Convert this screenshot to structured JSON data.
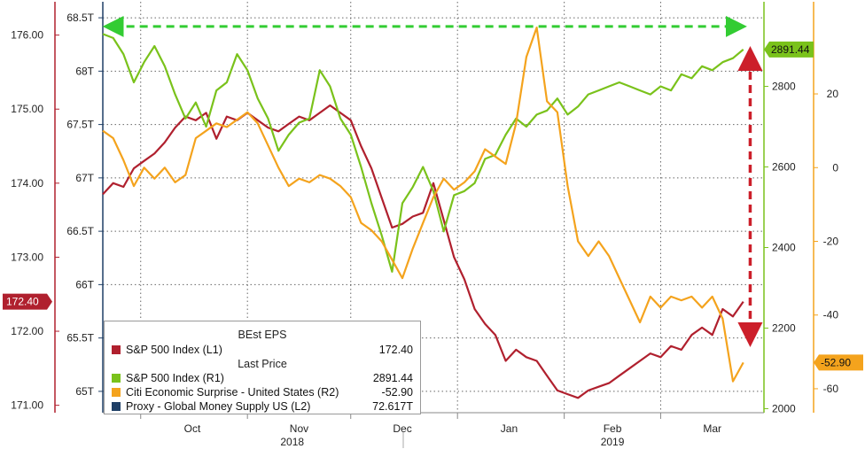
{
  "chart_data": {
    "type": "line",
    "x_range": [
      "2018-09-20",
      "2019-03-31"
    ],
    "x_month_labels": [
      "Oct",
      "Nov",
      "Dec",
      "Jan",
      "Feb",
      "Mar"
    ],
    "x_year_labels": [
      "2018",
      "2019"
    ],
    "axes": {
      "L1": {
        "ticks": [
          "171.00",
          "172.00",
          "173.00",
          "174.00",
          "175.00",
          "176.00"
        ],
        "range": [
          170.9,
          176.45
        ],
        "color": "#b0202e",
        "current_label": "172.40",
        "current_value": 172.4
      },
      "L2": {
        "ticks": [
          "65T",
          "65.5T",
          "66T",
          "66.5T",
          "67T",
          "67.5T",
          "68T",
          "68.5T"
        ],
        "range": [
          64.8,
          68.65
        ]
      },
      "R1": {
        "ticks": [
          "2000",
          "2200",
          "2400",
          "2600",
          "2800"
        ],
        "range": [
          1990,
          3010
        ],
        "color": "#7ac21b",
        "current_label": "2891.44",
        "current_value": 2891.44
      },
      "R2": {
        "ticks": [
          "-60",
          "-40",
          "-20",
          "0",
          "20"
        ],
        "range": [
          -66.5,
          45
        ],
        "color": "#f4a31d",
        "current_label": "-52.90",
        "current_value": -52.9
      }
    },
    "series": [
      {
        "name": "S&P 500 Index (L1)",
        "axis": "L1",
        "color": "#b0202e",
        "points": [
          [
            "2018-09-20",
            173.85
          ],
          [
            "2018-09-23",
            174.0
          ],
          [
            "2018-09-26",
            173.95
          ],
          [
            "2018-09-29",
            174.2
          ],
          [
            "2018-10-02",
            174.3
          ],
          [
            "2018-10-05",
            174.4
          ],
          [
            "2018-10-08",
            174.55
          ],
          [
            "2018-10-11",
            174.75
          ],
          [
            "2018-10-14",
            174.9
          ],
          [
            "2018-10-17",
            174.85
          ],
          [
            "2018-10-20",
            174.95
          ],
          [
            "2018-10-23",
            174.6
          ],
          [
            "2018-10-26",
            174.9
          ],
          [
            "2018-10-29",
            174.85
          ],
          [
            "2018-11-01",
            174.95
          ],
          [
            "2018-11-04",
            174.85
          ],
          [
            "2018-11-07",
            174.75
          ],
          [
            "2018-11-10",
            174.7
          ],
          [
            "2018-11-13",
            174.8
          ],
          [
            "2018-11-16",
            174.9
          ],
          [
            "2018-11-19",
            174.85
          ],
          [
            "2018-11-22",
            174.95
          ],
          [
            "2018-11-25",
            175.05
          ],
          [
            "2018-11-28",
            174.95
          ],
          [
            "2018-12-01",
            174.85
          ],
          [
            "2018-12-04",
            174.5
          ],
          [
            "2018-12-07",
            174.2
          ],
          [
            "2018-12-10",
            173.8
          ],
          [
            "2018-12-13",
            173.4
          ],
          [
            "2018-12-16",
            173.45
          ],
          [
            "2018-12-19",
            173.55
          ],
          [
            "2018-12-22",
            173.6
          ],
          [
            "2018-12-25",
            174.0
          ],
          [
            "2018-12-28",
            173.5
          ],
          [
            "2018-12-31",
            173.0
          ],
          [
            "2019-01-03",
            172.7
          ],
          [
            "2019-01-06",
            172.3
          ],
          [
            "2019-01-09",
            172.1
          ],
          [
            "2019-01-12",
            171.95
          ],
          [
            "2019-01-15",
            171.6
          ],
          [
            "2019-01-18",
            171.75
          ],
          [
            "2019-01-21",
            171.65
          ],
          [
            "2019-01-24",
            171.6
          ],
          [
            "2019-01-27",
            171.4
          ],
          [
            "2019-01-30",
            171.2
          ],
          [
            "2019-02-02",
            171.15
          ],
          [
            "2019-02-05",
            171.1
          ],
          [
            "2019-02-08",
            171.2
          ],
          [
            "2019-02-11",
            171.25
          ],
          [
            "2019-02-14",
            171.3
          ],
          [
            "2019-02-17",
            171.4
          ],
          [
            "2019-02-20",
            171.5
          ],
          [
            "2019-02-23",
            171.6
          ],
          [
            "2019-02-26",
            171.7
          ],
          [
            "2019-03-01",
            171.65
          ],
          [
            "2019-03-04",
            171.8
          ],
          [
            "2019-03-07",
            171.75
          ],
          [
            "2019-03-10",
            171.95
          ],
          [
            "2019-03-13",
            172.05
          ],
          [
            "2019-03-16",
            171.95
          ],
          [
            "2019-03-19",
            172.3
          ],
          [
            "2019-03-22",
            172.2
          ],
          [
            "2019-03-25",
            172.4
          ]
        ]
      },
      {
        "name": "S&P 500 Index (R1)",
        "axis": "R1",
        "color": "#7ac21b",
        "points": [
          [
            "2018-09-20",
            2930
          ],
          [
            "2018-09-23",
            2920
          ],
          [
            "2018-09-26",
            2880
          ],
          [
            "2018-09-29",
            2810
          ],
          [
            "2018-10-02",
            2860
          ],
          [
            "2018-10-05",
            2900
          ],
          [
            "2018-10-08",
            2850
          ],
          [
            "2018-10-11",
            2780
          ],
          [
            "2018-10-14",
            2720
          ],
          [
            "2018-10-17",
            2760
          ],
          [
            "2018-10-20",
            2700
          ],
          [
            "2018-10-23",
            2790
          ],
          [
            "2018-10-26",
            2810
          ],
          [
            "2018-10-29",
            2880
          ],
          [
            "2018-11-01",
            2840
          ],
          [
            "2018-11-04",
            2770
          ],
          [
            "2018-11-07",
            2720
          ],
          [
            "2018-11-10",
            2640
          ],
          [
            "2018-11-13",
            2680
          ],
          [
            "2018-11-16",
            2710
          ],
          [
            "2018-11-19",
            2720
          ],
          [
            "2018-11-22",
            2840
          ],
          [
            "2018-11-25",
            2800
          ],
          [
            "2018-11-28",
            2720
          ],
          [
            "2018-12-01",
            2680
          ],
          [
            "2018-12-04",
            2600
          ],
          [
            "2018-12-07",
            2510
          ],
          [
            "2018-12-10",
            2430
          ],
          [
            "2018-12-13",
            2340
          ],
          [
            "2018-12-16",
            2510
          ],
          [
            "2018-12-19",
            2550
          ],
          [
            "2018-12-22",
            2600
          ],
          [
            "2018-12-25",
            2540
          ],
          [
            "2018-12-28",
            2440
          ],
          [
            "2018-12-31",
            2530
          ],
          [
            "2019-01-03",
            2540
          ],
          [
            "2019-01-06",
            2560
          ],
          [
            "2019-01-09",
            2620
          ],
          [
            "2019-01-12",
            2630
          ],
          [
            "2019-01-15",
            2680
          ],
          [
            "2019-01-18",
            2720
          ],
          [
            "2019-01-21",
            2700
          ],
          [
            "2019-01-24",
            2730
          ],
          [
            "2019-01-27",
            2740
          ],
          [
            "2019-01-30",
            2770
          ],
          [
            "2019-02-02",
            2730
          ],
          [
            "2019-02-05",
            2750
          ],
          [
            "2019-02-08",
            2780
          ],
          [
            "2019-02-11",
            2790
          ],
          [
            "2019-02-14",
            2800
          ],
          [
            "2019-02-17",
            2810
          ],
          [
            "2019-02-20",
            2800
          ],
          [
            "2019-02-23",
            2790
          ],
          [
            "2019-02-26",
            2780
          ],
          [
            "2019-03-01",
            2800
          ],
          [
            "2019-03-04",
            2790
          ],
          [
            "2019-03-07",
            2830
          ],
          [
            "2019-03-10",
            2820
          ],
          [
            "2019-03-13",
            2850
          ],
          [
            "2019-03-16",
            2840
          ],
          [
            "2019-03-19",
            2860
          ],
          [
            "2019-03-22",
            2870
          ],
          [
            "2019-03-25",
            2891.44
          ]
        ]
      },
      {
        "name": "Citi Economic Surprise - United States (R2)",
        "axis": "R2",
        "color": "#f4a31d",
        "points": [
          [
            "2018-09-20",
            10
          ],
          [
            "2018-09-23",
            8
          ],
          [
            "2018-09-26",
            2
          ],
          [
            "2018-09-29",
            -5
          ],
          [
            "2018-10-02",
            0
          ],
          [
            "2018-10-05",
            -3
          ],
          [
            "2018-10-08",
            0
          ],
          [
            "2018-10-11",
            -4
          ],
          [
            "2018-10-14",
            -2
          ],
          [
            "2018-10-17",
            8
          ],
          [
            "2018-10-20",
            10
          ],
          [
            "2018-10-23",
            12
          ],
          [
            "2018-10-26",
            11
          ],
          [
            "2018-10-29",
            13
          ],
          [
            "2018-11-01",
            15
          ],
          [
            "2018-11-04",
            12
          ],
          [
            "2018-11-07",
            6
          ],
          [
            "2018-11-10",
            0
          ],
          [
            "2018-11-13",
            -5
          ],
          [
            "2018-11-16",
            -3
          ],
          [
            "2018-11-19",
            -4
          ],
          [
            "2018-11-22",
            -2
          ],
          [
            "2018-11-25",
            -3
          ],
          [
            "2018-11-28",
            -5
          ],
          [
            "2018-12-01",
            -8
          ],
          [
            "2018-12-04",
            -15
          ],
          [
            "2018-12-07",
            -17
          ],
          [
            "2018-12-10",
            -20
          ],
          [
            "2018-12-13",
            -25
          ],
          [
            "2018-12-16",
            -30
          ],
          [
            "2018-12-19",
            -22
          ],
          [
            "2018-12-22",
            -15
          ],
          [
            "2018-12-25",
            -8
          ],
          [
            "2018-12-28",
            -3
          ],
          [
            "2018-12-31",
            -6
          ],
          [
            "2019-01-03",
            -4
          ],
          [
            "2019-01-06",
            -1
          ],
          [
            "2019-01-09",
            5
          ],
          [
            "2019-01-12",
            3
          ],
          [
            "2019-01-15",
            1
          ],
          [
            "2019-01-18",
            12
          ],
          [
            "2019-01-21",
            30
          ],
          [
            "2019-01-24",
            38
          ],
          [
            "2019-01-27",
            18
          ],
          [
            "2019-01-30",
            15
          ],
          [
            "2019-02-02",
            -5
          ],
          [
            "2019-02-05",
            -20
          ],
          [
            "2019-02-08",
            -24
          ],
          [
            "2019-02-11",
            -20
          ],
          [
            "2019-02-14",
            -24
          ],
          [
            "2019-02-17",
            -30
          ],
          [
            "2019-02-20",
            -36
          ],
          [
            "2019-02-23",
            -42
          ],
          [
            "2019-02-26",
            -35
          ],
          [
            "2019-03-01",
            -38
          ],
          [
            "2019-03-04",
            -35
          ],
          [
            "2019-03-07",
            -36
          ],
          [
            "2019-03-10",
            -35
          ],
          [
            "2019-03-13",
            -38
          ],
          [
            "2019-03-16",
            -35
          ],
          [
            "2019-03-19",
            -41
          ],
          [
            "2019-03-22",
            -58
          ],
          [
            "2019-03-25",
            -52.9
          ]
        ]
      }
    ],
    "legend": {
      "heading_1": "BEst EPS",
      "heading_2": "Last Price",
      "items": [
        {
          "name": "S&P 500 Index  (L1)",
          "value": "172.40",
          "color": "#b0202e"
        },
        {
          "name": "S&P 500 Index  (R1)",
          "value": "2891.44",
          "color": "#7ac21b"
        },
        {
          "name": "Citi Economic Surprise - United States  (R2)",
          "value": "-52.90",
          "color": "#f4a31d"
        },
        {
          "name": "Proxy - Global Money Supply US  (L2)",
          "value": "72.617T",
          "color": "#1f3f66"
        }
      ]
    },
    "annotations": [
      {
        "type": "horizontal-double-arrow",
        "color": "#33cc33",
        "style": "dashed",
        "from": "2018-09-23",
        "to": "2019-03-23"
      },
      {
        "type": "vertical-double-arrow",
        "color": "#cc1f2a",
        "style": "dashed",
        "on": "2019-03-27"
      }
    ]
  }
}
